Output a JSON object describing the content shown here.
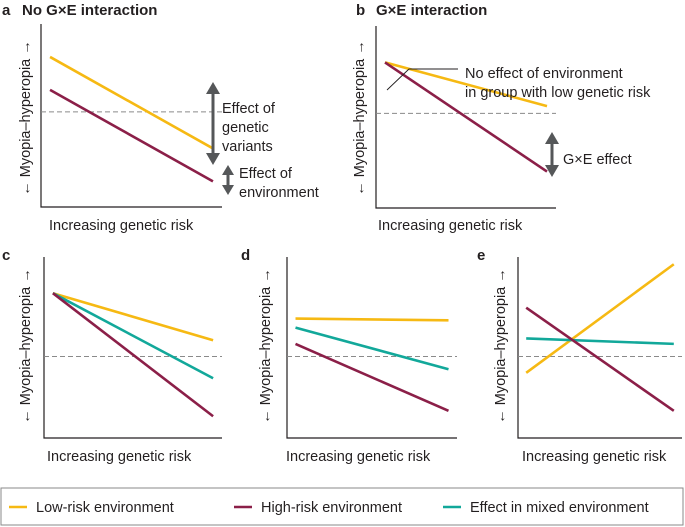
{
  "colors": {
    "low": "#f6b913",
    "high": "#8b1f48",
    "mixed": "#12a89a",
    "arrow": "#555759",
    "axis": "#231f20",
    "ref": "#8a8a8a"
  },
  "axis_labels": {
    "x": "Increasing genetic risk",
    "y": "← Myopia–hyperopia →"
  },
  "panels": {
    "a": {
      "label": "a",
      "title": "No G×E interaction"
    },
    "b": {
      "label": "b",
      "title": "G×E interaction"
    },
    "c": {
      "label": "c"
    },
    "d": {
      "label": "d"
    },
    "e": {
      "label": "e"
    }
  },
  "annotations": {
    "a_genetic": [
      "Effect of",
      "genetic",
      "variants"
    ],
    "a_env": [
      "Effect of",
      "environment"
    ],
    "b_noeffect": [
      "No effect of environment",
      "in group with low genetic risk"
    ],
    "b_gxe": "G×E effect"
  },
  "legend": {
    "low": "Low-risk environment",
    "high": "High-risk environment",
    "mixed": "Effect in mixed environment"
  },
  "chart_data": [
    {
      "type": "line",
      "panel": "a",
      "title": "No G×E interaction",
      "xlabel": "Increasing genetic risk",
      "ylabel": "Myopia–hyperopia",
      "xlim": [
        0,
        1
      ],
      "ylim": [
        0,
        1
      ],
      "reference_y": 0.52,
      "series": [
        {
          "name": "Low-risk environment",
          "color": "low",
          "x": [
            0.05,
            0.95
          ],
          "y": [
            0.82,
            0.32
          ]
        },
        {
          "name": "High-risk environment",
          "color": "high",
          "x": [
            0.05,
            0.95
          ],
          "y": [
            0.64,
            0.14
          ]
        }
      ]
    },
    {
      "type": "line",
      "panel": "b",
      "title": "G×E interaction",
      "xlabel": "Increasing genetic risk",
      "ylabel": "Myopia–hyperopia",
      "xlim": [
        0,
        1
      ],
      "ylim": [
        0,
        1
      ],
      "reference_y": 0.52,
      "series": [
        {
          "name": "Low-risk environment",
          "color": "low",
          "x": [
            0.05,
            0.95
          ],
          "y": [
            0.8,
            0.56
          ]
        },
        {
          "name": "High-risk environment",
          "color": "high",
          "x": [
            0.05,
            0.95
          ],
          "y": [
            0.8,
            0.2
          ]
        }
      ]
    },
    {
      "type": "line",
      "panel": "c",
      "xlabel": "Increasing genetic risk",
      "ylabel": "Myopia–hyperopia",
      "xlim": [
        0,
        1
      ],
      "ylim": [
        0,
        1
      ],
      "reference_y": 0.45,
      "series": [
        {
          "name": "Low-risk environment",
          "color": "low",
          "x": [
            0.05,
            0.95
          ],
          "y": [
            0.8,
            0.54
          ]
        },
        {
          "name": "High-risk environment",
          "color": "high",
          "x": [
            0.05,
            0.95
          ],
          "y": [
            0.8,
            0.12
          ]
        },
        {
          "name": "Effect in mixed environment",
          "color": "mixed",
          "x": [
            0.05,
            0.95
          ],
          "y": [
            0.8,
            0.33
          ]
        }
      ]
    },
    {
      "type": "line",
      "panel": "d",
      "xlabel": "Increasing genetic risk",
      "ylabel": "Myopia–hyperopia",
      "xlim": [
        0,
        1
      ],
      "ylim": [
        0,
        1
      ],
      "reference_y": 0.45,
      "series": [
        {
          "name": "Low-risk environment",
          "color": "low",
          "x": [
            0.05,
            0.95
          ],
          "y": [
            0.66,
            0.65
          ]
        },
        {
          "name": "High-risk environment",
          "color": "high",
          "x": [
            0.05,
            0.95
          ],
          "y": [
            0.52,
            0.15
          ]
        },
        {
          "name": "Effect in mixed environment",
          "color": "mixed",
          "x": [
            0.05,
            0.95
          ],
          "y": [
            0.61,
            0.38
          ]
        }
      ]
    },
    {
      "type": "line",
      "panel": "e",
      "xlabel": "Increasing genetic risk",
      "ylabel": "Myopia–hyperopia",
      "xlim": [
        0,
        1
      ],
      "ylim": [
        0,
        1
      ],
      "reference_y": 0.45,
      "series": [
        {
          "name": "Low-risk environment",
          "color": "low",
          "x": [
            0.05,
            0.95
          ],
          "y": [
            0.36,
            0.96
          ]
        },
        {
          "name": "High-risk environment",
          "color": "high",
          "x": [
            0.05,
            0.95
          ],
          "y": [
            0.72,
            0.15
          ]
        },
        {
          "name": "Effect in mixed environment",
          "color": "mixed",
          "x": [
            0.05,
            0.95
          ],
          "y": [
            0.55,
            0.52
          ]
        }
      ]
    }
  ]
}
